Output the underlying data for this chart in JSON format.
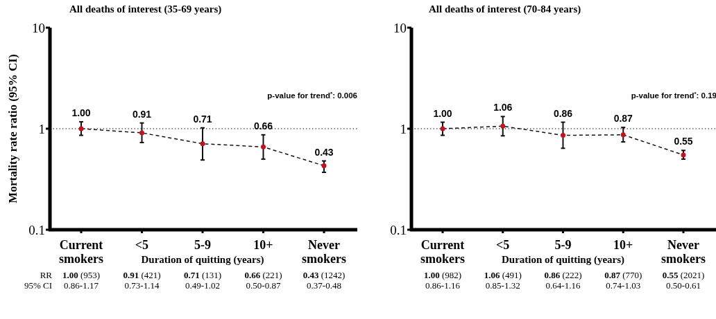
{
  "chart_data": [
    {
      "type": "line",
      "title": "All deaths of interest (35-69 years)",
      "ylabel": "Mortality rate ratio (95% CI)",
      "xlabel": "Duration of quitting (years)",
      "categories": [
        "Current smokers",
        "<5",
        "5-9",
        "10+",
        "Never smokers"
      ],
      "series": [
        {
          "color": "#111111",
          "values": [
            1.0,
            0.91,
            0.71,
            0.66,
            0.43
          ],
          "value_labels": [
            "1.00",
            "0.91",
            "0.71",
            "0.66",
            "0.43"
          ],
          "errors": [
            [
              0.86,
              1.17
            ],
            [
              0.73,
              1.14
            ],
            [
              0.49,
              1.02
            ],
            [
              0.5,
              0.87
            ],
            [
              0.37,
              0.48
            ]
          ]
        }
      ],
      "ylim": [
        0.1,
        10
      ],
      "yticks": [
        0.1,
        1,
        10
      ],
      "log": true,
      "grid": false,
      "marker": "circle",
      "line_style": "dashed",
      "ref_lines": [
        {
          "axis": "y",
          "value": 1,
          "line_style": "dotted"
        }
      ],
      "annotations": [
        "p-value for trend$^{*}$: 0.006",
        "RR",
        "95% CI",
        "1.00 (953)",
        "0.91 (421)",
        "0.71 (131)",
        "0.66 (221)",
        "0.43 (1242)",
        "0.86-1.17",
        "0.73-1.14",
        "0.49-1.02",
        "0.50-0.87",
        "0.37-0.48"
      ]
    },
    {
      "type": "line",
      "title": "All deaths of interest (70-84 years)",
      "xlabel": "Duration of quitting (years)",
      "categories": [
        "Current smokers",
        "<5",
        "5-9",
        "10+",
        "Never smokers"
      ],
      "series": [
        {
          "color": "#111111",
          "values": [
            1.0,
            1.06,
            0.86,
            0.87,
            0.55
          ],
          "value_labels": [
            "1.00",
            "1.06",
            "0.86",
            "0.87",
            "0.55"
          ],
          "errors": [
            [
              0.86,
              1.16
            ],
            [
              0.85,
              1.32
            ],
            [
              0.64,
              1.16
            ],
            [
              0.74,
              1.03
            ],
            [
              0.5,
              0.61
            ]
          ]
        }
      ],
      "ylim": [
        0.1,
        10
      ],
      "yticks": [
        0.1,
        1,
        10
      ],
      "log": true,
      "grid": false,
      "marker": "circle",
      "line_style": "dashed",
      "ref_lines": [
        {
          "axis": "y",
          "value": 1,
          "line_style": "dotted"
        }
      ],
      "annotations": [
        "p-value for trend$^{*}$: 0.19",
        "1.00 (982)",
        "1.06 (491)",
        "0.86 (222)",
        "0.87 (770)",
        "0.55 (2021)",
        "0.86-1.16",
        "0.85-1.32",
        "0.64-1.16",
        "0.74-1.03",
        "0.50-0.61"
      ]
    }
  ]
}
